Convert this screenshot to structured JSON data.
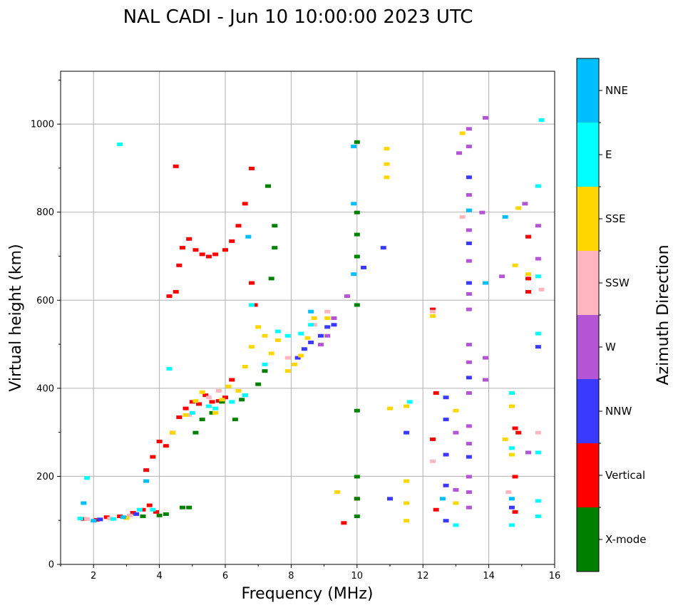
{
  "chart_data": {
    "type": "scatter",
    "title": "NAL CADI - Jun 10 10:00:00 2023 UTC",
    "xlabel": "Frequency (MHz)",
    "ylabel": "Virtual height (km)",
    "xlim": [
      1,
      16
    ],
    "ylim": [
      0,
      1120
    ],
    "xticks": [
      2,
      4,
      6,
      8,
      10,
      12,
      14,
      16
    ],
    "yticks": [
      0,
      200,
      400,
      600,
      800,
      1000
    ],
    "grid": true,
    "colorbar": {
      "label": "Azimuth Direction",
      "categories": [
        {
          "name": "X-mode",
          "color": "#008000"
        },
        {
          "name": "Vertical",
          "color": "#ff0000"
        },
        {
          "name": "NNW",
          "color": "#3a3aff"
        },
        {
          "name": "W",
          "color": "#b455d6"
        },
        {
          "name": "SSW",
          "color": "#ffb6c1"
        },
        {
          "name": "SSE",
          "color": "#ffd700"
        },
        {
          "name": "E",
          "color": "#00ffff"
        },
        {
          "name": "NNE",
          "color": "#00bfff"
        }
      ]
    },
    "series": [
      {
        "name": "Vertical",
        "points": [
          [
            1.7,
            104
          ],
          [
            2.1,
            102
          ],
          [
            2.4,
            108
          ],
          [
            2.8,
            110
          ],
          [
            3.0,
            107
          ],
          [
            3.2,
            118
          ],
          [
            3.5,
            125
          ],
          [
            3.7,
            135
          ],
          [
            3.9,
            120
          ],
          [
            3.6,
            215
          ],
          [
            3.8,
            245
          ],
          [
            4.0,
            280
          ],
          [
            4.2,
            270
          ],
          [
            4.4,
            300
          ],
          [
            4.6,
            335
          ],
          [
            4.8,
            355
          ],
          [
            5.0,
            370
          ],
          [
            5.2,
            365
          ],
          [
            5.4,
            385
          ],
          [
            5.6,
            370
          ],
          [
            5.8,
            372
          ],
          [
            6.0,
            380
          ],
          [
            6.2,
            420
          ],
          [
            4.3,
            610
          ],
          [
            4.5,
            620
          ],
          [
            4.6,
            680
          ],
          [
            4.7,
            720
          ],
          [
            4.9,
            740
          ],
          [
            5.1,
            715
          ],
          [
            5.3,
            705
          ],
          [
            5.5,
            700
          ],
          [
            5.7,
            705
          ],
          [
            6.0,
            715
          ],
          [
            6.2,
            735
          ],
          [
            6.4,
            770
          ],
          [
            6.6,
            820
          ],
          [
            6.8,
            900
          ],
          [
            4.5,
            905
          ],
          [
            6.8,
            640
          ],
          [
            6.9,
            590
          ],
          [
            12.3,
            580
          ],
          [
            12.4,
            390
          ],
          [
            12.3,
            285
          ],
          [
            12.4,
            125
          ],
          [
            10.0,
            150
          ],
          [
            9.6,
            95
          ],
          [
            14.8,
            310
          ],
          [
            14.9,
            300
          ],
          [
            14.8,
            200
          ],
          [
            14.8,
            120
          ],
          [
            15.2,
            620
          ],
          [
            15.2,
            650
          ],
          [
            15.2,
            745
          ]
        ]
      },
      {
        "name": "X-mode",
        "points": [
          [
            3.5,
            110
          ],
          [
            4.0,
            112
          ],
          [
            4.2,
            115
          ],
          [
            4.7,
            130
          ],
          [
            4.9,
            130
          ],
          [
            5.1,
            300
          ],
          [
            5.3,
            330
          ],
          [
            5.6,
            345
          ],
          [
            5.9,
            370
          ],
          [
            6.3,
            330
          ],
          [
            6.5,
            375
          ],
          [
            6.6,
            385
          ],
          [
            7.0,
            410
          ],
          [
            7.2,
            440
          ],
          [
            7.4,
            650
          ],
          [
            7.5,
            720
          ],
          [
            7.5,
            770
          ],
          [
            7.3,
            860
          ],
          [
            10.0,
            110
          ],
          [
            10.0,
            150
          ],
          [
            10.0,
            200
          ],
          [
            10.0,
            350
          ],
          [
            10.0,
            590
          ],
          [
            10.0,
            700
          ],
          [
            10.0,
            750
          ],
          [
            10.0,
            800
          ],
          [
            10.0,
            960
          ]
        ]
      },
      {
        "name": "NNW",
        "points": [
          [
            2.2,
            103
          ],
          [
            3.3,
            115
          ],
          [
            8.2,
            470
          ],
          [
            8.4,
            490
          ],
          [
            8.6,
            505
          ],
          [
            8.9,
            520
          ],
          [
            9.1,
            540
          ],
          [
            9.3,
            545
          ],
          [
            12.7,
            100
          ],
          [
            12.7,
            180
          ],
          [
            12.7,
            250
          ],
          [
            12.7,
            330
          ],
          [
            12.7,
            380
          ],
          [
            11.5,
            300
          ],
          [
            11.0,
            150
          ],
          [
            13.4,
            245
          ],
          [
            13.4,
            425
          ],
          [
            13.4,
            640
          ],
          [
            13.4,
            730
          ],
          [
            13.4,
            880
          ],
          [
            10.2,
            675
          ],
          [
            10.8,
            720
          ],
          [
            14.7,
            130
          ],
          [
            15.5,
            495
          ]
        ]
      },
      {
        "name": "W",
        "points": [
          [
            8.9,
            500
          ],
          [
            9.1,
            520
          ],
          [
            9.3,
            560
          ],
          [
            9.7,
            610
          ],
          [
            13.0,
            300
          ],
          [
            13.0,
            170
          ],
          [
            13.1,
            935
          ],
          [
            13.4,
            130
          ],
          [
            13.4,
            165
          ],
          [
            13.4,
            200
          ],
          [
            13.4,
            275
          ],
          [
            13.4,
            315
          ],
          [
            13.4,
            390
          ],
          [
            13.4,
            460
          ],
          [
            13.4,
            500
          ],
          [
            13.4,
            580
          ],
          [
            13.4,
            615
          ],
          [
            13.4,
            690
          ],
          [
            13.4,
            760
          ],
          [
            13.4,
            840
          ],
          [
            13.4,
            950
          ],
          [
            13.4,
            990
          ],
          [
            13.9,
            470
          ],
          [
            13.9,
            420
          ],
          [
            13.9,
            1015
          ],
          [
            13.8,
            800
          ],
          [
            14.4,
            655
          ],
          [
            15.1,
            820
          ],
          [
            15.5,
            695
          ],
          [
            15.5,
            770
          ],
          [
            15.2,
            255
          ]
        ]
      },
      {
        "name": "SSW",
        "points": [
          [
            1.8,
            104
          ],
          [
            2.5,
            105
          ],
          [
            3.1,
            112
          ],
          [
            4.9,
            340
          ],
          [
            5.5,
            380
          ],
          [
            5.8,
            395
          ],
          [
            7.9,
            470
          ],
          [
            8.7,
            545
          ],
          [
            9.1,
            575
          ],
          [
            12.3,
            575
          ],
          [
            12.3,
            235
          ],
          [
            13.2,
            790
          ],
          [
            14.6,
            165
          ],
          [
            15.5,
            300
          ],
          [
            15.6,
            625
          ]
        ]
      },
      {
        "name": "SSE",
        "points": [
          [
            3.0,
            106
          ],
          [
            4.4,
            300
          ],
          [
            4.8,
            340
          ],
          [
            5.1,
            372
          ],
          [
            5.3,
            392
          ],
          [
            5.7,
            345
          ],
          [
            5.9,
            375
          ],
          [
            6.1,
            405
          ],
          [
            6.4,
            395
          ],
          [
            6.6,
            450
          ],
          [
            6.8,
            495
          ],
          [
            7.0,
            540
          ],
          [
            7.2,
            520
          ],
          [
            7.4,
            480
          ],
          [
            7.6,
            510
          ],
          [
            7.9,
            440
          ],
          [
            8.1,
            455
          ],
          [
            8.3,
            475
          ],
          [
            8.5,
            515
          ],
          [
            8.7,
            560
          ],
          [
            9.1,
            560
          ],
          [
            11.5,
            100
          ],
          [
            11.5,
            140
          ],
          [
            11.5,
            190
          ],
          [
            11.5,
            360
          ],
          [
            11.0,
            355
          ],
          [
            10.9,
            880
          ],
          [
            10.9,
            910
          ],
          [
            10.9,
            945
          ],
          [
            9.4,
            165
          ],
          [
            12.3,
            565
          ],
          [
            13.0,
            140
          ],
          [
            13.0,
            350
          ],
          [
            13.2,
            980
          ],
          [
            14.5,
            285
          ],
          [
            14.7,
            250
          ],
          [
            14.7,
            360
          ],
          [
            14.8,
            680
          ],
          [
            14.9,
            810
          ],
          [
            15.2,
            660
          ]
        ]
      },
      {
        "name": "E",
        "points": [
          [
            1.6,
            105
          ],
          [
            2.6,
            104
          ],
          [
            3.4,
            125
          ],
          [
            3.8,
            125
          ],
          [
            4.3,
            445
          ],
          [
            5.0,
            345
          ],
          [
            5.5,
            360
          ],
          [
            5.7,
            355
          ],
          [
            6.2,
            370
          ],
          [
            6.6,
            385
          ],
          [
            6.8,
            590
          ],
          [
            7.2,
            455
          ],
          [
            7.6,
            530
          ],
          [
            7.9,
            520
          ],
          [
            8.3,
            525
          ],
          [
            8.6,
            545
          ],
          [
            11.6,
            370
          ],
          [
            13.0,
            90
          ],
          [
            14.7,
            90
          ],
          [
            14.7,
            390
          ],
          [
            14.7,
            265
          ],
          [
            15.5,
            145
          ],
          [
            15.5,
            110
          ],
          [
            15.5,
            255
          ],
          [
            15.5,
            525
          ],
          [
            15.5,
            655
          ],
          [
            15.5,
            860
          ],
          [
            15.6,
            1010
          ],
          [
            2.8,
            955
          ],
          [
            1.8,
            197
          ]
        ]
      },
      {
        "name": "NNE",
        "points": [
          [
            1.7,
            140
          ],
          [
            2.0,
            100
          ],
          [
            2.9,
            108
          ],
          [
            3.6,
            190
          ],
          [
            6.7,
            745
          ],
          [
            8.6,
            575
          ],
          [
            9.9,
            660
          ],
          [
            9.9,
            950
          ],
          [
            9.9,
            820
          ],
          [
            12.6,
            150
          ],
          [
            14.7,
            150
          ],
          [
            13.4,
            805
          ],
          [
            13.9,
            640
          ],
          [
            14.5,
            790
          ]
        ]
      }
    ]
  }
}
